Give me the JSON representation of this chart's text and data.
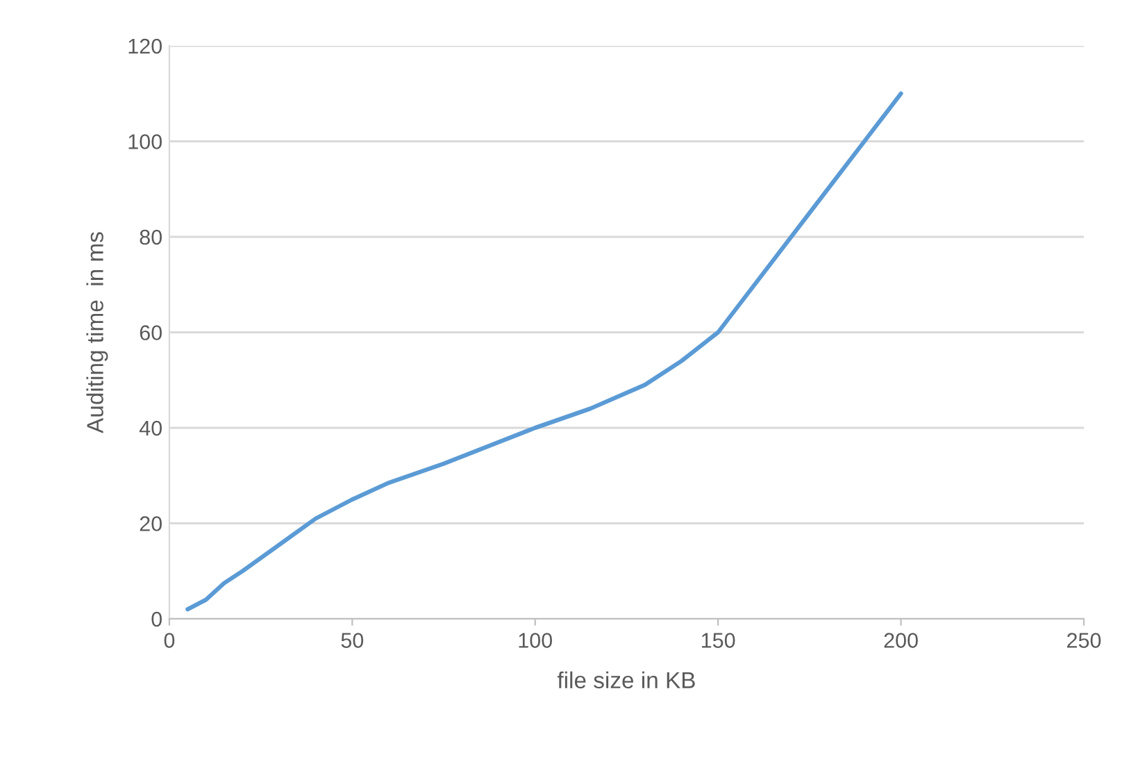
{
  "chart_data": {
    "type": "line",
    "xlabel": "file size in KB",
    "ylabel": "Auditing time  in ms",
    "x": [
      5,
      10,
      15,
      20,
      30,
      40,
      50,
      60,
      75,
      90,
      100,
      115,
      130,
      140,
      150,
      160,
      175,
      190,
      200
    ],
    "series": [
      {
        "color": "#5b9bd5",
        "values": [
          2,
          4,
          7.5,
          10,
          15.5,
          21,
          25,
          28.5,
          32.5,
          37,
          40,
          44,
          49,
          54,
          60,
          70,
          85,
          100,
          110
        ]
      }
    ],
    "xlim": [
      0,
      250
    ],
    "xticks": [
      0,
      50,
      100,
      150,
      200,
      250
    ],
    "ylim": [
      0,
      120
    ],
    "yticks": [
      0,
      20,
      40,
      60,
      80,
      100,
      120
    ],
    "grid": "y",
    "marker": "none",
    "line_style": "solid"
  }
}
